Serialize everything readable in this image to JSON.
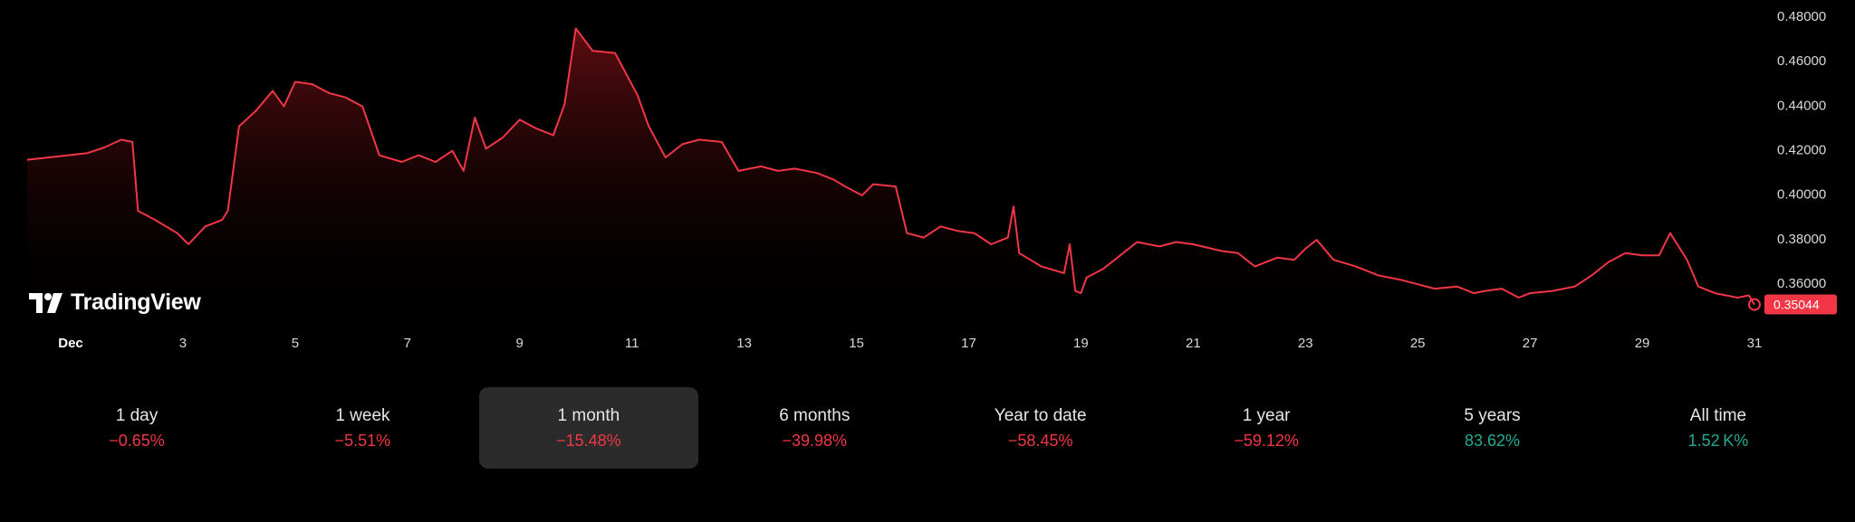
{
  "brand": {
    "name": "TradingView",
    "logo_icon": "tradingview-logo-icon"
  },
  "colors": {
    "line": "#f23645",
    "negative": "#f23645",
    "positive": "#22ab94",
    "active_bg": "#2b2b2b",
    "background": "#000000"
  },
  "chart_data": {
    "type": "area",
    "title": "",
    "xlabel": "",
    "ylabel": "",
    "x_ticks": [
      "Dec",
      "3",
      "5",
      "7",
      "9",
      "11",
      "13",
      "15",
      "17",
      "19",
      "21",
      "23",
      "25",
      "27",
      "29",
      "31"
    ],
    "y_ticks": [
      "0.48000",
      "0.46000",
      "0.44000",
      "0.42000",
      "0.40000",
      "0.38000",
      "0.36000"
    ],
    "ylim": [
      0.347,
      0.481
    ],
    "xlim": [
      1,
      31.2
    ],
    "grid": false,
    "last_price": "0.35044",
    "series": [
      {
        "points": [
          [
            1.0,
            0.4155
          ],
          [
            1.3,
            0.4185
          ],
          [
            1.6,
            0.421
          ],
          [
            1.9,
            0.4245
          ],
          [
            2.1,
            0.4235
          ],
          [
            2.2,
            0.3925
          ],
          [
            2.5,
            0.3885
          ],
          [
            2.9,
            0.3825
          ],
          [
            3.1,
            0.3775
          ],
          [
            3.4,
            0.3855
          ],
          [
            3.7,
            0.3885
          ],
          [
            3.8,
            0.3925
          ],
          [
            4.0,
            0.4305
          ],
          [
            4.3,
            0.4375
          ],
          [
            4.6,
            0.4465
          ],
          [
            4.8,
            0.4395
          ],
          [
            5.0,
            0.4505
          ],
          [
            5.3,
            0.4495
          ],
          [
            5.6,
            0.4455
          ],
          [
            5.9,
            0.4435
          ],
          [
            6.2,
            0.4395
          ],
          [
            6.5,
            0.4175
          ],
          [
            6.9,
            0.4145
          ],
          [
            7.2,
            0.4175
          ],
          [
            7.5,
            0.4145
          ],
          [
            7.8,
            0.4195
          ],
          [
            8.0,
            0.4105
          ],
          [
            8.2,
            0.4345
          ],
          [
            8.4,
            0.4205
          ],
          [
            8.7,
            0.4255
          ],
          [
            9.0,
            0.4335
          ],
          [
            9.3,
            0.4295
          ],
          [
            9.6,
            0.4265
          ],
          [
            9.8,
            0.4405
          ],
          [
            10.0,
            0.4745
          ],
          [
            10.3,
            0.4645
          ],
          [
            10.7,
            0.4635
          ],
          [
            11.1,
            0.4445
          ],
          [
            11.3,
            0.4305
          ],
          [
            11.6,
            0.4165
          ],
          [
            11.9,
            0.4225
          ],
          [
            12.2,
            0.4245
          ],
          [
            12.6,
            0.4235
          ],
          [
            12.9,
            0.4105
          ],
          [
            13.3,
            0.4125
          ],
          [
            13.6,
            0.4105
          ],
          [
            13.9,
            0.4115
          ],
          [
            14.3,
            0.4095
          ],
          [
            14.6,
            0.4065
          ],
          [
            14.8,
            0.4035
          ],
          [
            15.1,
            0.3995
          ],
          [
            15.3,
            0.4045
          ],
          [
            15.7,
            0.4035
          ],
          [
            15.9,
            0.3825
          ],
          [
            16.2,
            0.3805
          ],
          [
            16.5,
            0.3855
          ],
          [
            16.8,
            0.3835
          ],
          [
            17.1,
            0.3825
          ],
          [
            17.4,
            0.3775
          ],
          [
            17.7,
            0.3805
          ],
          [
            17.8,
            0.3945
          ],
          [
            17.9,
            0.3735
          ],
          [
            18.3,
            0.3675
          ],
          [
            18.7,
            0.3645
          ],
          [
            18.8,
            0.3775
          ],
          [
            18.9,
            0.3565
          ],
          [
            19.0,
            0.3555
          ],
          [
            19.1,
            0.3625
          ],
          [
            19.4,
            0.3665
          ],
          [
            19.7,
            0.3725
          ],
          [
            20.0,
            0.3785
          ],
          [
            20.4,
            0.3765
          ],
          [
            20.7,
            0.3785
          ],
          [
            21.0,
            0.3775
          ],
          [
            21.5,
            0.3745
          ],
          [
            21.8,
            0.3735
          ],
          [
            22.1,
            0.3675
          ],
          [
            22.5,
            0.3715
          ],
          [
            22.8,
            0.3705
          ],
          [
            23.0,
            0.3755
          ],
          [
            23.2,
            0.3795
          ],
          [
            23.5,
            0.3705
          ],
          [
            23.9,
            0.3675
          ],
          [
            24.3,
            0.3635
          ],
          [
            24.7,
            0.3615
          ],
          [
            25.0,
            0.3595
          ],
          [
            25.3,
            0.3575
          ],
          [
            25.7,
            0.3585
          ],
          [
            26.0,
            0.3555
          ],
          [
            26.2,
            0.3565
          ],
          [
            26.5,
            0.3575
          ],
          [
            26.8,
            0.3535
          ],
          [
            27.0,
            0.3555
          ],
          [
            27.4,
            0.3565
          ],
          [
            27.8,
            0.3585
          ],
          [
            28.1,
            0.3635
          ],
          [
            28.4,
            0.3695
          ],
          [
            28.7,
            0.3735
          ],
          [
            29.0,
            0.3725
          ],
          [
            29.3,
            0.3725
          ],
          [
            29.5,
            0.3825
          ],
          [
            29.8,
            0.3705
          ],
          [
            30.0,
            0.3585
          ],
          [
            30.3,
            0.3555
          ],
          [
            30.7,
            0.3535
          ],
          [
            30.9,
            0.3545
          ],
          [
            31.0,
            0.3504
          ]
        ]
      }
    ]
  },
  "periods": [
    {
      "label": "1 day",
      "change": "−0.65%",
      "direction": "neg",
      "active": false
    },
    {
      "label": "1 week",
      "change": "−5.51%",
      "direction": "neg",
      "active": false
    },
    {
      "label": "1 month",
      "change": "−15.48%",
      "direction": "neg",
      "active": true
    },
    {
      "label": "6 months",
      "change": "−39.98%",
      "direction": "neg",
      "active": false
    },
    {
      "label": "Year to date",
      "change": "−58.45%",
      "direction": "neg",
      "active": false
    },
    {
      "label": "1 year",
      "change": "−59.12%",
      "direction": "neg",
      "active": false
    },
    {
      "label": "5 years",
      "change": "83.62%",
      "direction": "pos",
      "active": false
    },
    {
      "label": "All time",
      "change": "1.52 K%",
      "direction": "pos",
      "active": false
    }
  ]
}
